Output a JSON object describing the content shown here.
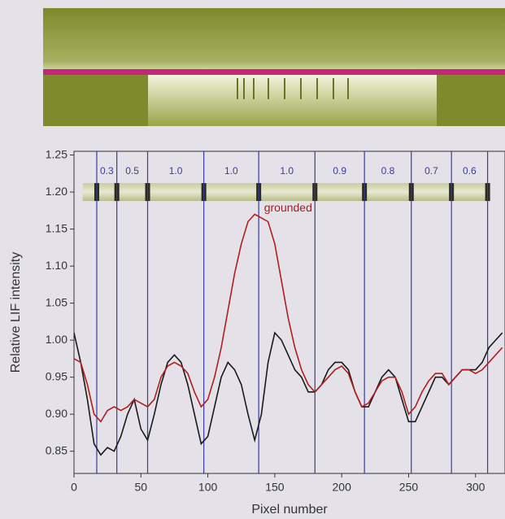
{
  "chart_data": {
    "type": "line",
    "x_label": "Pixel number",
    "y_label": "Relative LIF intensity",
    "annotation": {
      "text": "grounded",
      "x": 142,
      "y": 1.178
    },
    "xlim": [
      0,
      322
    ],
    "ylim": [
      0.82,
      1.255
    ],
    "xticks": [
      0,
      50,
      100,
      150,
      200,
      250,
      300
    ],
    "yticks": [
      0.85,
      {
        "value": 0.9,
        "label": "0.90"
      },
      0.95,
      {
        "value": 1.0,
        "label": "1.00"
      },
      1.05,
      {
        "value": 1.1,
        "label": "1.10"
      },
      1.15,
      {
        "value": 1.2,
        "label": "1.20"
      },
      1.25
    ],
    "markers": [
      17,
      32,
      55,
      97,
      138,
      180,
      217,
      252,
      282,
      309
    ],
    "segment_labels": [
      "0.3",
      "0.5",
      "1.0",
      "1.0",
      "1.0",
      "0.9",
      "0.8",
      "0.7",
      "0.6"
    ],
    "marker_color": "#3a3a9a",
    "x": [
      0,
      5,
      10,
      15,
      20,
      25,
      30,
      35,
      40,
      45,
      50,
      55,
      60,
      65,
      70,
      75,
      80,
      85,
      90,
      95,
      100,
      105,
      110,
      115,
      120,
      125,
      130,
      135,
      140,
      145,
      150,
      155,
      160,
      165,
      170,
      175,
      180,
      185,
      190,
      195,
      200,
      205,
      210,
      215,
      220,
      225,
      230,
      235,
      240,
      245,
      250,
      255,
      260,
      265,
      270,
      275,
      280,
      285,
      290,
      295,
      300,
      305,
      310,
      315,
      320
    ],
    "series": [
      {
        "color": "#1a1a1a",
        "values": [
          1.01,
          0.97,
          0.92,
          0.86,
          0.845,
          0.855,
          0.85,
          0.87,
          0.9,
          0.92,
          0.88,
          0.865,
          0.9,
          0.94,
          0.97,
          0.98,
          0.97,
          0.94,
          0.9,
          0.86,
          0.87,
          0.91,
          0.95,
          0.97,
          0.96,
          0.94,
          0.9,
          0.865,
          0.9,
          0.97,
          1.01,
          1.0,
          0.98,
          0.96,
          0.95,
          0.93,
          0.93,
          0.94,
          0.96,
          0.97,
          0.97,
          0.96,
          0.93,
          0.91,
          0.91,
          0.93,
          0.95,
          0.96,
          0.95,
          0.92,
          0.89,
          0.89,
          0.91,
          0.93,
          0.95,
          0.95,
          0.94,
          0.95,
          0.96,
          0.96,
          0.96,
          0.97,
          0.99,
          1.0,
          1.01
        ]
      },
      {
        "color": "#b01e1e",
        "values": [
          0.975,
          0.97,
          0.94,
          0.9,
          0.89,
          0.905,
          0.91,
          0.905,
          0.91,
          0.92,
          0.915,
          0.91,
          0.92,
          0.95,
          0.965,
          0.97,
          0.965,
          0.955,
          0.93,
          0.91,
          0.92,
          0.95,
          0.99,
          1.04,
          1.09,
          1.13,
          1.16,
          1.17,
          1.165,
          1.16,
          1.13,
          1.08,
          1.03,
          0.99,
          0.96,
          0.94,
          0.93,
          0.94,
          0.95,
          0.96,
          0.965,
          0.955,
          0.93,
          0.91,
          0.915,
          0.93,
          0.945,
          0.95,
          0.95,
          0.93,
          0.9,
          0.91,
          0.93,
          0.945,
          0.955,
          0.955,
          0.94,
          0.95,
          0.96,
          0.96,
          0.955,
          0.96,
          0.97,
          0.98,
          0.99
        ]
      }
    ]
  }
}
